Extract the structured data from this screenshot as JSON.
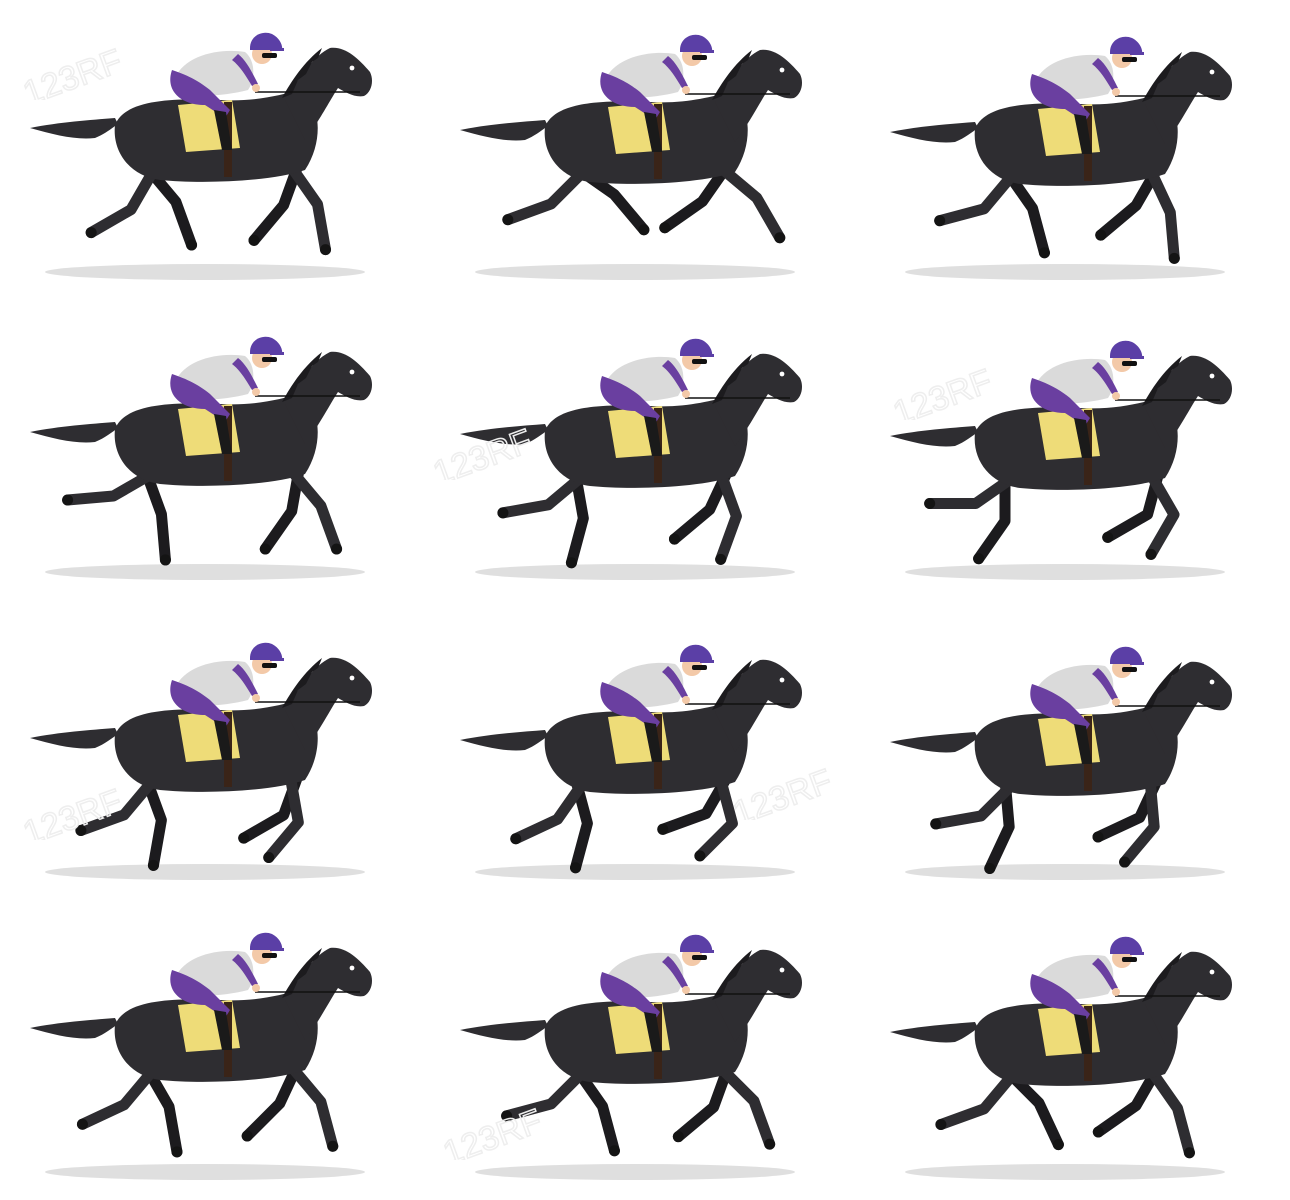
{
  "sheet": {
    "columns": 3,
    "rows": 4,
    "frame_count": 12,
    "colors": {
      "background": "#ffffff",
      "horse": "#2e2d31",
      "horse_shade": "#1c1b1e",
      "hoof": "#141414",
      "jockey_helmet": "#5b3fa6",
      "jockey_silks_purple": "#6a3fa0",
      "jockey_silks_white": "#dadada",
      "jockey_skin": "#f3c9a8",
      "saddle_cloth": "#eedc78",
      "shadow": "#d4d4d4",
      "watermark": "#eeeeee"
    }
  },
  "frames": [
    {
      "pose": "stretched-gallop"
    },
    {
      "pose": "full-extension"
    },
    {
      "pose": "landing-front"
    },
    {
      "pose": "tucked-hind"
    },
    {
      "pose": "gathering"
    },
    {
      "pose": "gathered-airborne"
    },
    {
      "pose": "hind-reach"
    },
    {
      "pose": "hind-reach-2"
    },
    {
      "pose": "suspension"
    },
    {
      "pose": "push-off"
    },
    {
      "pose": "reaching"
    },
    {
      "pose": "extended-trot"
    }
  ],
  "watermarks": [
    {
      "text": "123RF"
    },
    {
      "text": "123RF"
    },
    {
      "text": "123RF"
    },
    {
      "text": "123RF"
    },
    {
      "text": "123RF"
    },
    {
      "text": "123RF"
    }
  ]
}
